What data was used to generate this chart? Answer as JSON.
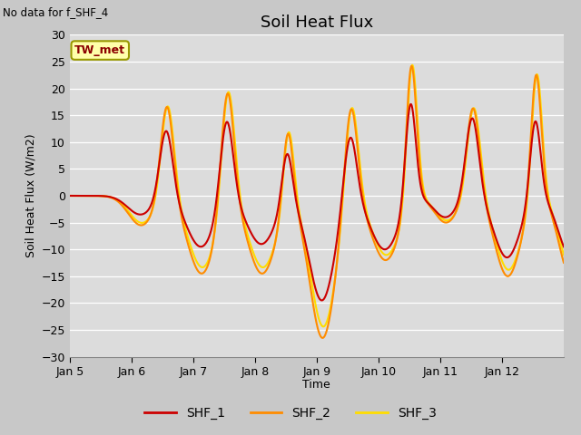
{
  "title": "Soil Heat Flux",
  "ylabel": "Soil Heat Flux (W/m2)",
  "xlabel": "Time",
  "no_data_text": "No data for f_SHF_4",
  "tw_met_label": "TW_met",
  "ylim": [
    -30,
    30
  ],
  "yticks": [
    -30,
    -25,
    -20,
    -15,
    -10,
    -5,
    0,
    5,
    10,
    15,
    20,
    25,
    30
  ],
  "xtick_labels": [
    "Jan 5",
    "Jan 6",
    "Jan 7",
    "Jan 8",
    "Jan 9",
    "Jan 10",
    "Jan 11",
    "Jan 12"
  ],
  "colors": {
    "SHF_1": "#cc0000",
    "SHF_2": "#ff8c00",
    "SHF_3": "#ffdd00"
  },
  "ax_facecolor": "#dcdcdc",
  "fig_facecolor": "#c8c8c8",
  "grid_color": "#ffffff",
  "legend_labels": [
    "SHF_1",
    "SHF_2",
    "SHF_3"
  ],
  "title_fontsize": 13,
  "axis_label_fontsize": 9,
  "tick_fontsize": 9
}
